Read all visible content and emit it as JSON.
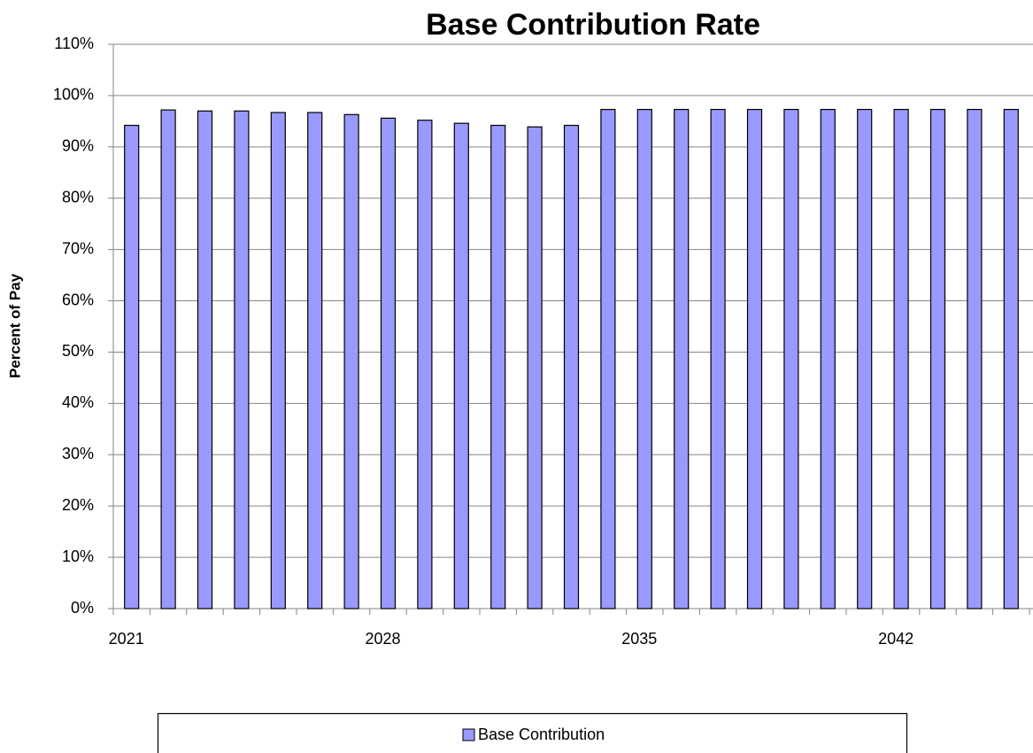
{
  "chart_data": {
    "type": "bar",
    "title": "Base Contribution Rate",
    "y_label": "Percent of Pay",
    "categories": [
      "2021",
      null,
      null,
      null,
      null,
      null,
      null,
      "2028",
      null,
      null,
      null,
      null,
      null,
      null,
      "2035",
      null,
      null,
      null,
      null,
      null,
      null,
      "2042",
      null,
      null,
      null
    ],
    "series": [
      {
        "name": "Base Contribution",
        "color": "#9999ff",
        "values": [
          94.2,
          97.2,
          97.0,
          97.0,
          96.7,
          96.7,
          96.3,
          95.6,
          95.2,
          94.6,
          94.2,
          93.9,
          94.2,
          97.3,
          97.3,
          97.3,
          97.3,
          97.3,
          97.3,
          97.3,
          97.3,
          97.3,
          97.3,
          97.3,
          97.3
        ]
      }
    ],
    "ylim": [
      0,
      110
    ],
    "yticks": [
      {
        "value": 0,
        "label": "0%"
      },
      {
        "value": 10,
        "label": "10%"
      },
      {
        "value": 20,
        "label": "20%"
      },
      {
        "value": 30,
        "label": "30%"
      },
      {
        "value": 40,
        "label": "40%"
      },
      {
        "value": 50,
        "label": "50%"
      },
      {
        "value": 60,
        "label": "60%"
      },
      {
        "value": 70,
        "label": "70%"
      },
      {
        "value": 80,
        "label": "80%"
      },
      {
        "value": 90,
        "label": "90%"
      },
      {
        "value": 100,
        "label": "100%"
      },
      {
        "value": 110,
        "label": "110%"
      }
    ],
    "grid": true,
    "legend": "bottom"
  }
}
